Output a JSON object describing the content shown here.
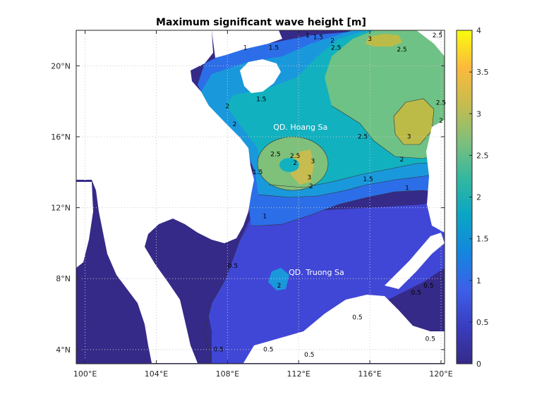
{
  "chart_data": {
    "type": "heatmap",
    "title": "Maximum significant wave height [m]",
    "xlabel": "",
    "ylabel": "",
    "xlim": [
      99.5,
      120.2
    ],
    "ylim": [
      3.2,
      22
    ],
    "x_ticks": [
      {
        "value": 100,
        "label": "100°E"
      },
      {
        "value": 104,
        "label": "104°E"
      },
      {
        "value": 108,
        "label": "108°E"
      },
      {
        "value": 112,
        "label": "112°E"
      },
      {
        "value": 116,
        "label": "116°E"
      },
      {
        "value": 120,
        "label": "120°E"
      }
    ],
    "y_ticks": [
      {
        "value": 4,
        "label": "4°N"
      },
      {
        "value": 8,
        "label": "8°N"
      },
      {
        "value": 12,
        "label": "12°N"
      },
      {
        "value": 16,
        "label": "16°N"
      },
      {
        "value": 20,
        "label": "20°N"
      }
    ],
    "colorbar": {
      "min": 0,
      "max": 4,
      "ticks": [
        "0",
        "0.5",
        "1",
        "1.5",
        "2",
        "2.5",
        "3",
        "3.5",
        "4"
      ],
      "colors": [
        "#352a87",
        "#3a3dbf",
        "#3d5fe8",
        "#1486de",
        "#0aa5c4",
        "#33b8a0",
        "#7fbf7b",
        "#c6bc4f",
        "#fbba3c",
        "#f9fb0e"
      ]
    },
    "contour_levels": [
      0.5,
      1,
      1.5,
      2,
      2.5,
      3,
      3.5
    ],
    "contour_labels": [
      {
        "text": "1",
        "lon": 112.5,
        "lat": 21.6
      },
      {
        "text": "1.5",
        "lon": 113.1,
        "lat": 21.5
      },
      {
        "text": "2",
        "lon": 113.9,
        "lat": 21.3
      },
      {
        "text": "2.5",
        "lon": 114.1,
        "lat": 20.9
      },
      {
        "text": "3",
        "lon": 116.0,
        "lat": 21.4
      },
      {
        "text": "2.5",
        "lon": 117.8,
        "lat": 20.8
      },
      {
        "text": "2.5",
        "lon": 119.8,
        "lat": 21.6
      },
      {
        "text": "1",
        "lon": 109.0,
        "lat": 20.9
      },
      {
        "text": "1.5",
        "lon": 110.6,
        "lat": 20.9
      },
      {
        "text": "1.5",
        "lon": 109.9,
        "lat": 18.0
      },
      {
        "text": "2",
        "lon": 108.0,
        "lat": 17.6
      },
      {
        "text": "2",
        "lon": 108.4,
        "lat": 16.6
      },
      {
        "text": "2.5",
        "lon": 120.0,
        "lat": 17.8
      },
      {
        "text": "2",
        "lon": 120.0,
        "lat": 16.8
      },
      {
        "text": "2.5",
        "lon": 115.6,
        "lat": 15.9
      },
      {
        "text": "3",
        "lon": 118.2,
        "lat": 15.9
      },
      {
        "text": "2",
        "lon": 117.8,
        "lat": 14.6
      },
      {
        "text": "1.5",
        "lon": 115.9,
        "lat": 13.5
      },
      {
        "text": "1",
        "lon": 118.1,
        "lat": 13.0
      },
      {
        "text": "2.5",
        "lon": 110.7,
        "lat": 14.9
      },
      {
        "text": "2.5",
        "lon": 111.8,
        "lat": 14.8
      },
      {
        "text": "2",
        "lon": 111.8,
        "lat": 14.4
      },
      {
        "text": "3",
        "lon": 112.8,
        "lat": 14.5
      },
      {
        "text": "3",
        "lon": 112.6,
        "lat": 13.6
      },
      {
        "text": "2",
        "lon": 112.7,
        "lat": 13.1
      },
      {
        "text": "1.5",
        "lon": 109.7,
        "lat": 13.9
      },
      {
        "text": "1",
        "lon": 110.1,
        "lat": 11.4
      },
      {
        "text": "0.5",
        "lon": 108.3,
        "lat": 8.6
      },
      {
        "text": "2",
        "lon": 110.9,
        "lat": 7.5
      },
      {
        "text": "0.5",
        "lon": 118.6,
        "lat": 7.1
      },
      {
        "text": "0.5",
        "lon": 119.3,
        "lat": 7.5
      },
      {
        "text": "0.5",
        "lon": 115.3,
        "lat": 5.7
      },
      {
        "text": "0.5",
        "lon": 119.4,
        "lat": 4.5
      },
      {
        "text": "0.5",
        "lon": 107.5,
        "lat": 3.9
      },
      {
        "text": "0.5",
        "lon": 110.3,
        "lat": 3.9
      },
      {
        "text": "0.5",
        "lon": 112.6,
        "lat": 3.6
      }
    ],
    "place_labels": [
      {
        "text": "QD. Hoang Sa",
        "lon": 112.1,
        "lat": 16.4
      },
      {
        "text": "QD. Truong Sa",
        "lon": 113.0,
        "lat": 8.2
      }
    ],
    "grid": true,
    "legend": "colorbar-right"
  }
}
